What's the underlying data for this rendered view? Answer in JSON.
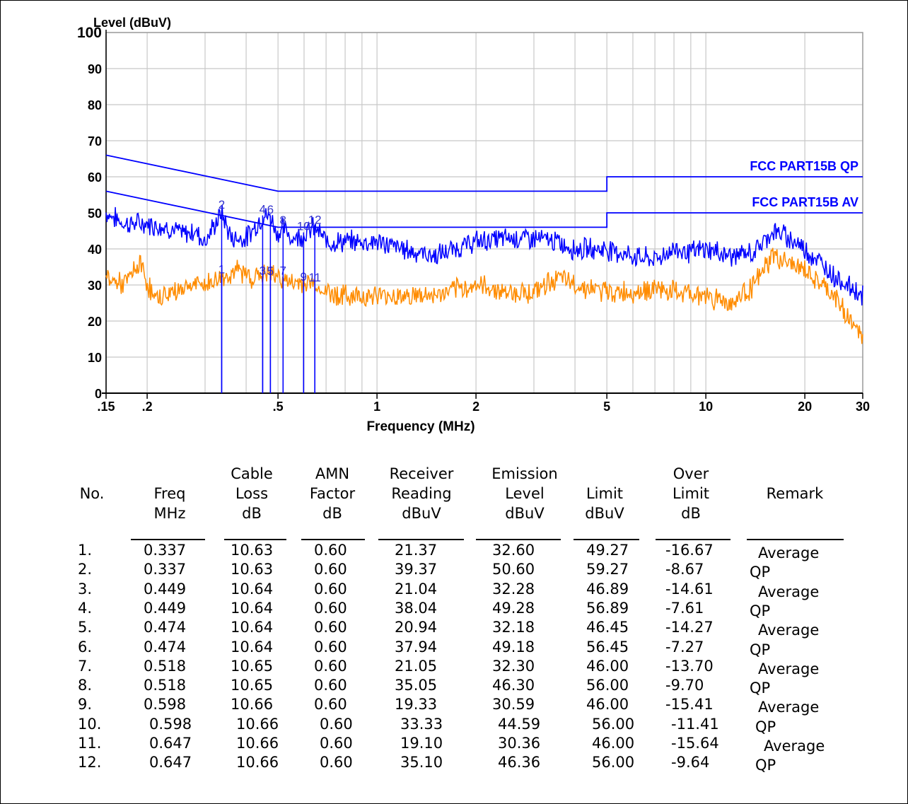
{
  "chart_data": {
    "type": "line",
    "ylabel": "Level (dBuV)",
    "xlabel": "Frequency (MHz)",
    "x_scale": "log",
    "xlim": [
      0.15,
      30
    ],
    "ylim": [
      0,
      100
    ],
    "grid": true,
    "x_ticks": [
      ".15",
      ".2",
      ".5",
      "1",
      "2",
      "5",
      "10",
      "20",
      "30"
    ],
    "y_ticks": [
      "0",
      "10",
      "20",
      "30",
      "40",
      "50",
      "60",
      "70",
      "80",
      "90",
      "100"
    ],
    "limit_lines": [
      {
        "name": "FCC PART15B QP",
        "color": "#0000ff",
        "points": [
          [
            0.15,
            66
          ],
          [
            0.5,
            56
          ],
          [
            5,
            56
          ],
          [
            5,
            60
          ],
          [
            30,
            60
          ]
        ]
      },
      {
        "name": "FCC PART15B AV",
        "color": "#0000ff",
        "points": [
          [
            0.15,
            56
          ],
          [
            0.5,
            46
          ],
          [
            5,
            46
          ],
          [
            5,
            50
          ],
          [
            30,
            50
          ]
        ]
      }
    ],
    "series": [
      {
        "color": "#0000ff",
        "points": [
          [
            0.15,
            50
          ],
          [
            0.17,
            47
          ],
          [
            0.2,
            47
          ],
          [
            0.23,
            46
          ],
          [
            0.26,
            44
          ],
          [
            0.28,
            45
          ],
          [
            0.3,
            42
          ],
          [
            0.337,
            50
          ],
          [
            0.36,
            43
          ],
          [
            0.4,
            43
          ],
          [
            0.449,
            49
          ],
          [
            0.474,
            49
          ],
          [
            0.5,
            44
          ],
          [
            0.518,
            46
          ],
          [
            0.55,
            43
          ],
          [
            0.598,
            44
          ],
          [
            0.647,
            46
          ],
          [
            0.7,
            42
          ],
          [
            0.8,
            42
          ],
          [
            1,
            42
          ],
          [
            1.2,
            40
          ],
          [
            1.5,
            38
          ],
          [
            2,
            42
          ],
          [
            2.5,
            43
          ],
          [
            3,
            43
          ],
          [
            3.5,
            42
          ],
          [
            4,
            40
          ],
          [
            5,
            40
          ],
          [
            6,
            38
          ],
          [
            7,
            37
          ],
          [
            8,
            40
          ],
          [
            9,
            39
          ],
          [
            10,
            40
          ],
          [
            12,
            38
          ],
          [
            14,
            39
          ],
          [
            16,
            45
          ],
          [
            18,
            43
          ],
          [
            20,
            40
          ],
          [
            25,
            32
          ],
          [
            30,
            27
          ]
        ]
      },
      {
        "color": "#ff8c00",
        "points": [
          [
            0.15,
            32
          ],
          [
            0.17,
            30
          ],
          [
            0.19,
            36
          ],
          [
            0.21,
            26
          ],
          [
            0.24,
            28
          ],
          [
            0.27,
            30
          ],
          [
            0.3,
            30
          ],
          [
            0.337,
            32
          ],
          [
            0.38,
            34
          ],
          [
            0.42,
            32
          ],
          [
            0.449,
            33
          ],
          [
            0.474,
            33
          ],
          [
            0.518,
            32
          ],
          [
            0.55,
            30
          ],
          [
            0.598,
            31
          ],
          [
            0.647,
            30
          ],
          [
            0.7,
            28
          ],
          [
            0.8,
            27
          ],
          [
            1,
            27
          ],
          [
            1.2,
            27
          ],
          [
            1.5,
            27
          ],
          [
            2,
            30
          ],
          [
            2.5,
            28
          ],
          [
            3,
            28
          ],
          [
            3.5,
            32
          ],
          [
            4,
            30
          ],
          [
            5,
            28
          ],
          [
            6,
            28
          ],
          [
            7,
            29
          ],
          [
            8,
            28
          ],
          [
            10,
            27
          ],
          [
            12,
            25
          ],
          [
            14,
            30
          ],
          [
            16,
            38
          ],
          [
            18,
            36
          ],
          [
            20,
            34
          ],
          [
            25,
            26
          ],
          [
            30,
            15
          ]
        ]
      }
    ],
    "markers": [
      {
        "label": "1",
        "x": 0.337,
        "y": 32.6
      },
      {
        "label": "2",
        "x": 0.337,
        "y": 50.6
      },
      {
        "label": "3",
        "x": 0.449,
        "y": 32.28
      },
      {
        "label": "4",
        "x": 0.449,
        "y": 49.28
      },
      {
        "label": "5",
        "x": 0.474,
        "y": 32.18
      },
      {
        "label": "6",
        "x": 0.474,
        "y": 49.18
      },
      {
        "label": "7",
        "x": 0.518,
        "y": 32.3
      },
      {
        "label": "8",
        "x": 0.518,
        "y": 46.3
      },
      {
        "label": "9",
        "x": 0.598,
        "y": 30.59
      },
      {
        "label": "10",
        "x": 0.598,
        "y": 44.59
      },
      {
        "label": "11",
        "x": 0.647,
        "y": 30.36
      },
      {
        "label": "12",
        "x": 0.647,
        "y": 46.36
      }
    ]
  },
  "table": {
    "headers": [
      [
        "No."
      ],
      [
        "Freq",
        "MHz"
      ],
      [
        "Cable",
        "Loss",
        "dB"
      ],
      [
        "AMN",
        "Factor",
        "dB"
      ],
      [
        "Receiver",
        "Reading",
        "dBuV"
      ],
      [
        "Emission",
        "Level",
        "dBuV"
      ],
      [
        "Limit",
        "dBuV"
      ],
      [
        "Over",
        "Limit",
        "dB"
      ],
      [
        "Remark"
      ]
    ],
    "rows": [
      [
        "1.",
        "0.337",
        "10.63",
        "0.60",
        "21.37",
        "32.60",
        "49.27",
        "-16.67",
        "Average"
      ],
      [
        "2.",
        "0.337",
        "10.63",
        "0.60",
        "39.37",
        "50.60",
        "59.27",
        "-8.67",
        "QP"
      ],
      [
        "3.",
        "0.449",
        "10.64",
        "0.60",
        "21.04",
        "32.28",
        "46.89",
        "-14.61",
        "Average"
      ],
      [
        "4.",
        "0.449",
        "10.64",
        "0.60",
        "38.04",
        "49.28",
        "56.89",
        "-7.61",
        "QP"
      ],
      [
        "5.",
        "0.474",
        "10.64",
        "0.60",
        "20.94",
        "32.18",
        "46.45",
        "-14.27",
        "Average"
      ],
      [
        "6.",
        "0.474",
        "10.64",
        "0.60",
        "37.94",
        "49.18",
        "56.45",
        "-7.27",
        "QP"
      ],
      [
        "7.",
        "0.518",
        "10.65",
        "0.60",
        "21.05",
        "32.30",
        "46.00",
        "-13.70",
        "Average"
      ],
      [
        "8.",
        "0.518",
        "10.65",
        "0.60",
        "35.05",
        "46.30",
        "56.00",
        "-9.70",
        "QP"
      ],
      [
        "9.",
        "0.598",
        "10.66",
        "0.60",
        "19.33",
        "30.59",
        "46.00",
        "-15.41",
        "Average"
      ],
      [
        "10.",
        "0.598",
        "10.66",
        "0.60",
        "33.33",
        "44.59",
        "56.00",
        "-11.41",
        "QP"
      ],
      [
        "11.",
        "0.647",
        "10.66",
        "0.60",
        "19.10",
        "30.36",
        "46.00",
        "-15.64",
        "Average"
      ],
      [
        "12.",
        "0.647",
        "10.66",
        "0.60",
        "35.10",
        "46.36",
        "56.00",
        "-9.64",
        "QP"
      ]
    ]
  }
}
